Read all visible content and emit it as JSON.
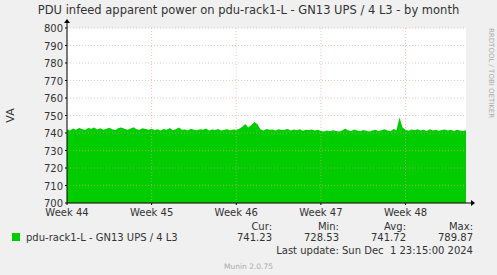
{
  "chart_data": {
    "type": "area",
    "title": "PDU infeed apparent power on pdu-rack1-L - GN13 UPS / 4 L3 - by month",
    "y_label": "VA",
    "categories": [
      "Week 44",
      null,
      null,
      null,
      null,
      null,
      null,
      null,
      null,
      null,
      null,
      null,
      null,
      null,
      null,
      null,
      null,
      null,
      null,
      null,
      null,
      null,
      null,
      null,
      null,
      null,
      null,
      null,
      "Week 45",
      null,
      null,
      null,
      null,
      null,
      null,
      null,
      null,
      null,
      null,
      null,
      null,
      null,
      null,
      null,
      null,
      null,
      null,
      null,
      null,
      null,
      null,
      null,
      null,
      null,
      null,
      null,
      "Week 46",
      null,
      null,
      null,
      null,
      null,
      null,
      null,
      null,
      null,
      null,
      null,
      null,
      null,
      null,
      null,
      null,
      null,
      null,
      null,
      null,
      null,
      null,
      null,
      null,
      null,
      null,
      null,
      "Week 47",
      null,
      null,
      null,
      null,
      null,
      null,
      null,
      null,
      null,
      null,
      null,
      null,
      null,
      null,
      null,
      null,
      null,
      null,
      null,
      null,
      null,
      null,
      null,
      null,
      null,
      null,
      null,
      "Week 48",
      null,
      null,
      null,
      null,
      null,
      null,
      null,
      null,
      null,
      null,
      null,
      null,
      null,
      null,
      null,
      null,
      null,
      null,
      null,
      null
    ],
    "series": [
      {
        "name": "pdu-rack1-L - GN13 UPS / 4 L3",
        "color": "#00cc00",
        "values": [
          742.1,
          741.5,
          742.6,
          741.9,
          742.8,
          742.3,
          741.7,
          742.9,
          742.4,
          743.1,
          742.0,
          742.7,
          741.8,
          742.5,
          743.0,
          742.2,
          741.6,
          742.8,
          743.2,
          742.4,
          741.9,
          742.6,
          743.3,
          742.1,
          741.8,
          742.7,
          742.3,
          741.9,
          742.4,
          741.7,
          742.1,
          741.5,
          742.3,
          741.9,
          742.8,
          741.6,
          742.2,
          743.1,
          741.8,
          742.0,
          741.4,
          742.5,
          741.9,
          741.6,
          742.2,
          741.8,
          742.6,
          741.5,
          742.0,
          741.7,
          742.3,
          741.4,
          741.9,
          742.1,
          741.6,
          742.0,
          741.8,
          742.4,
          743.6,
          745.1,
          743.2,
          744.6,
          746.3,
          745.0,
          742.1,
          741.5,
          742.3,
          741.8,
          742.0,
          741.4,
          742.2,
          741.7,
          741.9,
          742.3,
          741.5,
          742.0,
          741.6,
          742.1,
          741.3,
          741.9,
          741.7,
          742.0,
          741.4,
          741.8,
          741.2,
          740.8,
          741.5,
          741.0,
          741.6,
          741.1,
          740.9,
          741.4,
          742.5,
          741.6,
          741.2,
          742.0,
          741.5,
          741.0,
          741.7,
          741.3,
          740.9,
          741.5,
          741.8,
          741.2,
          741.6,
          742.1,
          741.4,
          741.0,
          742.3,
          741.6,
          748.8,
          743.2,
          741.9,
          741.3,
          742.0,
          741.6,
          742.2,
          741.4,
          741.8,
          741.2,
          742.1,
          741.5,
          741.9,
          741.3,
          741.7,
          742.0,
          741.4,
          741.8,
          741.2,
          741.9,
          741.5,
          741.1,
          741.6
        ]
      }
    ],
    "ylim": [
      700,
      800
    ],
    "yticks": [
      700,
      710,
      720,
      730,
      740,
      750,
      760,
      770,
      780,
      790,
      800
    ],
    "grid": true,
    "stats": [
      {
        "label": "Cur:",
        "value": 741.23
      },
      {
        "label": "Min:",
        "value": 728.53
      },
      {
        "label": "Avg:",
        "value": 741.72
      },
      {
        "label": "Max:",
        "value": 789.87
      }
    ],
    "footer": "Last update: Sun Dec  1 23:15:00 2024",
    "credit": "Munin 2.0.75",
    "watermark": "RRDTOOL / TOBI OETIKER"
  }
}
